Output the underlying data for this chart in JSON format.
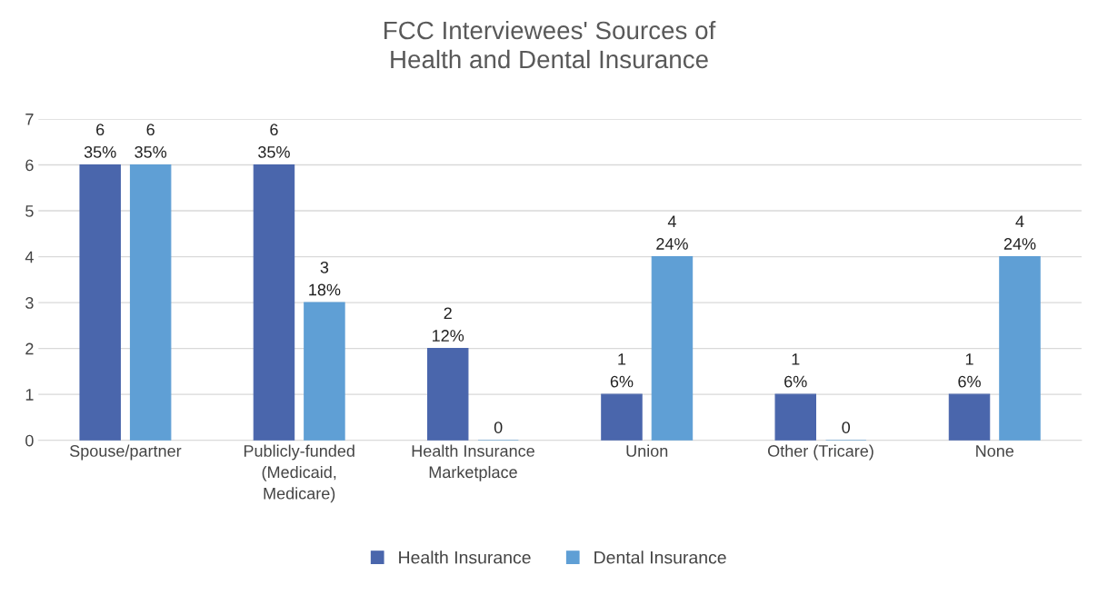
{
  "chart_data": {
    "type": "bar",
    "title": "FCC Interviewees' Sources of\nHealth and Dental Insurance",
    "categories": [
      "Spouse/partner",
      "Publicly-funded\n(Medicaid,\nMedicare)",
      "Health Insurance\nMarketplace",
      "Union",
      "Other (Tricare)",
      "None"
    ],
    "series": [
      {
        "name": "Health Insurance",
        "color": "#4a66ac",
        "values": [
          6,
          6,
          2,
          1,
          1,
          1
        ],
        "value_labels": [
          "6\n35%",
          "6\n35%",
          "2\n12%",
          "1\n6%",
          "1\n6%",
          "1\n6%"
        ]
      },
      {
        "name": "Dental Insurance",
        "color": "#5f9fd5",
        "values": [
          6,
          3,
          0,
          4,
          0,
          4
        ],
        "value_labels": [
          "6\n35%",
          "3\n18%",
          "0",
          "4\n24%",
          "0",
          "4\n24%"
        ]
      }
    ],
    "ylim": [
      0,
      7
    ],
    "yticks": [
      0,
      1,
      2,
      3,
      4,
      5,
      6,
      7
    ],
    "grid": "y",
    "legend": "bottom"
  }
}
